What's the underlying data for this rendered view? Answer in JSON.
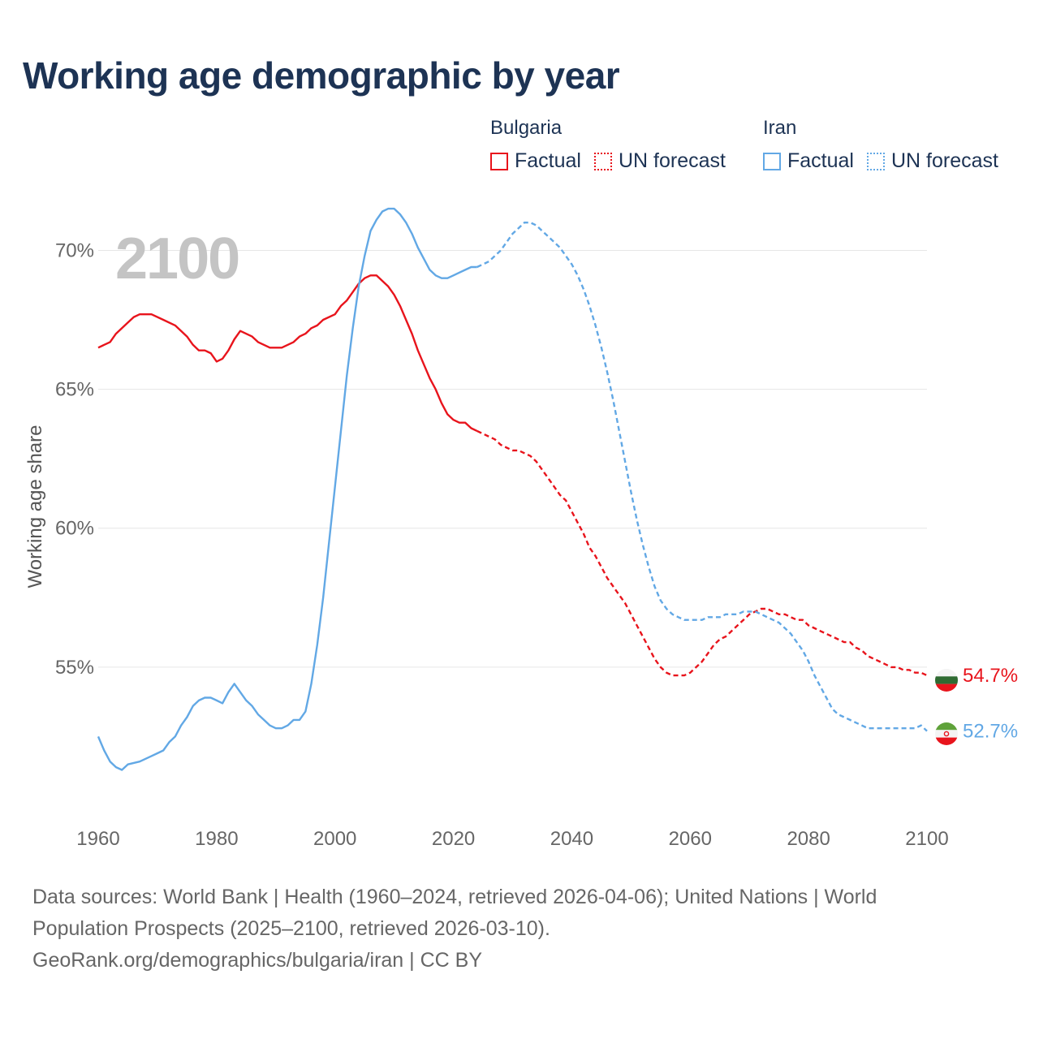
{
  "title": "Working age demographic by year",
  "year_label": "2100",
  "legend": {
    "groups": [
      {
        "name": "Bulgaria",
        "factual_label": "Factual",
        "forecast_label": "UN forecast",
        "color": "#e8141c"
      },
      {
        "name": "Iran",
        "factual_label": "Factual",
        "forecast_label": "UN forecast",
        "color": "#62a8e5"
      }
    ]
  },
  "sources": {
    "line1": "Data sources: World Bank | Health (1960–2024, retrieved 2026-04-06); United Nations | World Population Prospects (2025–2100, retrieved 2026-03-10).",
    "line2": "GeoRank.org/demographics/bulgaria/iran | CC BY"
  },
  "chart_data": {
    "type": "line",
    "title": "Working age demographic by year",
    "xlabel": "",
    "ylabel": "Working age share",
    "xlim": [
      1960,
      2100
    ],
    "ylim": [
      50,
      72
    ],
    "x_ticks": [
      1960,
      1980,
      2000,
      2020,
      2040,
      2060,
      2080,
      2100
    ],
    "x_tick_labels": [
      "1960",
      "1980",
      "2000",
      "2020",
      "2040",
      "2060",
      "2080",
      "2100"
    ],
    "y_ticks": [
      55,
      60,
      65,
      70
    ],
    "y_tick_labels": [
      "55%",
      "60%",
      "65%",
      "70%"
    ],
    "forecast_start": 2024,
    "grid": true,
    "series": [
      {
        "name": "Bulgaria",
        "color": "#e8141c",
        "end_label": "54.7%",
        "points": [
          [
            1960,
            66.5
          ],
          [
            1962,
            66.7
          ],
          [
            1963,
            67.0
          ],
          [
            1965,
            67.4
          ],
          [
            1966,
            67.6
          ],
          [
            1967,
            67.7
          ],
          [
            1969,
            67.7
          ],
          [
            1971,
            67.5
          ],
          [
            1973,
            67.3
          ],
          [
            1975,
            66.9
          ],
          [
            1976,
            66.6
          ],
          [
            1977,
            66.4
          ],
          [
            1978,
            66.4
          ],
          [
            1979,
            66.3
          ],
          [
            1980,
            66.0
          ],
          [
            1981,
            66.1
          ],
          [
            1982,
            66.4
          ],
          [
            1983,
            66.8
          ],
          [
            1984,
            67.1
          ],
          [
            1986,
            66.9
          ],
          [
            1987,
            66.7
          ],
          [
            1989,
            66.5
          ],
          [
            1991,
            66.5
          ],
          [
            1993,
            66.7
          ],
          [
            1994,
            66.9
          ],
          [
            1995,
            67.0
          ],
          [
            1996,
            67.2
          ],
          [
            1997,
            67.3
          ],
          [
            1998,
            67.5
          ],
          [
            2000,
            67.7
          ],
          [
            2001,
            68.0
          ],
          [
            2002,
            68.2
          ],
          [
            2003,
            68.5
          ],
          [
            2004,
            68.8
          ],
          [
            2005,
            69.0
          ],
          [
            2006,
            69.1
          ],
          [
            2007,
            69.1
          ],
          [
            2008,
            68.9
          ],
          [
            2009,
            68.7
          ],
          [
            2010,
            68.4
          ],
          [
            2011,
            68.0
          ],
          [
            2012,
            67.5
          ],
          [
            2013,
            67.0
          ],
          [
            2014,
            66.4
          ],
          [
            2015,
            65.9
          ],
          [
            2016,
            65.4
          ],
          [
            2017,
            65.0
          ],
          [
            2018,
            64.5
          ],
          [
            2019,
            64.1
          ],
          [
            2020,
            63.9
          ],
          [
            2021,
            63.8
          ],
          [
            2022,
            63.8
          ],
          [
            2023,
            63.6
          ],
          [
            2024,
            63.5
          ],
          [
            2025,
            63.4
          ],
          [
            2026,
            63.3
          ],
          [
            2027,
            63.2
          ],
          [
            2028,
            63.0
          ],
          [
            2029,
            62.9
          ],
          [
            2030,
            62.8
          ],
          [
            2031,
            62.8
          ],
          [
            2032,
            62.7
          ],
          [
            2033,
            62.6
          ],
          [
            2034,
            62.4
          ],
          [
            2035,
            62.1
          ],
          [
            2036,
            61.8
          ],
          [
            2037,
            61.5
          ],
          [
            2038,
            61.2
          ],
          [
            2039,
            61.0
          ],
          [
            2040,
            60.6
          ],
          [
            2041,
            60.2
          ],
          [
            2042,
            59.8
          ],
          [
            2043,
            59.3
          ],
          [
            2044,
            59.0
          ],
          [
            2045,
            58.6
          ],
          [
            2046,
            58.2
          ],
          [
            2047,
            57.9
          ],
          [
            2048,
            57.6
          ],
          [
            2049,
            57.3
          ],
          [
            2050,
            56.9
          ],
          [
            2051,
            56.5
          ],
          [
            2052,
            56.1
          ],
          [
            2053,
            55.7
          ],
          [
            2054,
            55.3
          ],
          [
            2055,
            55.0
          ],
          [
            2056,
            54.8
          ],
          [
            2057,
            54.7
          ],
          [
            2058,
            54.7
          ],
          [
            2059,
            54.7
          ],
          [
            2060,
            54.8
          ],
          [
            2061,
            55.0
          ],
          [
            2062,
            55.2
          ],
          [
            2063,
            55.5
          ],
          [
            2064,
            55.8
          ],
          [
            2065,
            56.0
          ],
          [
            2066,
            56.1
          ],
          [
            2067,
            56.3
          ],
          [
            2068,
            56.5
          ],
          [
            2069,
            56.7
          ],
          [
            2070,
            56.9
          ],
          [
            2071,
            57.0
          ],
          [
            2072,
            57.1
          ],
          [
            2073,
            57.1
          ],
          [
            2074,
            57.0
          ],
          [
            2075,
            56.9
          ],
          [
            2076,
            56.9
          ],
          [
            2077,
            56.8
          ],
          [
            2078,
            56.7
          ],
          [
            2079,
            56.7
          ],
          [
            2080,
            56.5
          ],
          [
            2081,
            56.4
          ],
          [
            2082,
            56.3
          ],
          [
            2083,
            56.2
          ],
          [
            2084,
            56.1
          ],
          [
            2085,
            56.0
          ],
          [
            2086,
            55.9
          ],
          [
            2087,
            55.9
          ],
          [
            2088,
            55.7
          ],
          [
            2089,
            55.6
          ],
          [
            2090,
            55.4
          ],
          [
            2091,
            55.3
          ],
          [
            2092,
            55.2
          ],
          [
            2093,
            55.1
          ],
          [
            2094,
            55.0
          ],
          [
            2095,
            55.0
          ],
          [
            2096,
            54.9
          ],
          [
            2097,
            54.9
          ],
          [
            2098,
            54.8
          ],
          [
            2099,
            54.8
          ],
          [
            2100,
            54.7
          ]
        ]
      },
      {
        "name": "Iran",
        "color": "#62a8e5",
        "end_label": "52.7%",
        "points": [
          [
            1960,
            52.5
          ],
          [
            1961,
            52.0
          ],
          [
            1962,
            51.6
          ],
          [
            1963,
            51.4
          ],
          [
            1964,
            51.3
          ],
          [
            1965,
            51.5
          ],
          [
            1967,
            51.6
          ],
          [
            1969,
            51.8
          ],
          [
            1970,
            51.9
          ],
          [
            1971,
            52.0
          ],
          [
            1972,
            52.3
          ],
          [
            1973,
            52.5
          ],
          [
            1974,
            52.9
          ],
          [
            1975,
            53.2
          ],
          [
            1976,
            53.6
          ],
          [
            1977,
            53.8
          ],
          [
            1978,
            53.9
          ],
          [
            1979,
            53.9
          ],
          [
            1980,
            53.8
          ],
          [
            1981,
            53.7
          ],
          [
            1982,
            54.1
          ],
          [
            1983,
            54.4
          ],
          [
            1984,
            54.1
          ],
          [
            1985,
            53.8
          ],
          [
            1986,
            53.6
          ],
          [
            1987,
            53.3
          ],
          [
            1988,
            53.1
          ],
          [
            1989,
            52.9
          ],
          [
            1990,
            52.8
          ],
          [
            1991,
            52.8
          ],
          [
            1992,
            52.9
          ],
          [
            1993,
            53.1
          ],
          [
            1994,
            53.1
          ],
          [
            1995,
            53.4
          ],
          [
            1996,
            54.4
          ],
          [
            1997,
            55.8
          ],
          [
            1998,
            57.5
          ],
          [
            1999,
            59.5
          ],
          [
            2000,
            61.5
          ],
          [
            2001,
            63.5
          ],
          [
            2002,
            65.5
          ],
          [
            2003,
            67.2
          ],
          [
            2004,
            68.7
          ],
          [
            2005,
            69.8
          ],
          [
            2006,
            70.7
          ],
          [
            2007,
            71.1
          ],
          [
            2008,
            71.4
          ],
          [
            2009,
            71.5
          ],
          [
            2010,
            71.5
          ],
          [
            2011,
            71.3
          ],
          [
            2012,
            71.0
          ],
          [
            2013,
            70.6
          ],
          [
            2014,
            70.1
          ],
          [
            2015,
            69.7
          ],
          [
            2016,
            69.3
          ],
          [
            2017,
            69.1
          ],
          [
            2018,
            69.0
          ],
          [
            2019,
            69.0
          ],
          [
            2020,
            69.1
          ],
          [
            2021,
            69.2
          ],
          [
            2022,
            69.3
          ],
          [
            2023,
            69.4
          ],
          [
            2024,
            69.4
          ],
          [
            2025,
            69.5
          ],
          [
            2026,
            69.6
          ],
          [
            2027,
            69.8
          ],
          [
            2028,
            70.0
          ],
          [
            2029,
            70.3
          ],
          [
            2030,
            70.6
          ],
          [
            2031,
            70.8
          ],
          [
            2032,
            71.0
          ],
          [
            2033,
            71.0
          ],
          [
            2034,
            70.9
          ],
          [
            2035,
            70.7
          ],
          [
            2036,
            70.5
          ],
          [
            2037,
            70.3
          ],
          [
            2038,
            70.1
          ],
          [
            2039,
            69.8
          ],
          [
            2040,
            69.5
          ],
          [
            2041,
            69.1
          ],
          [
            2042,
            68.6
          ],
          [
            2043,
            68.0
          ],
          [
            2044,
            67.3
          ],
          [
            2045,
            66.5
          ],
          [
            2046,
            65.6
          ],
          [
            2047,
            64.6
          ],
          [
            2048,
            63.5
          ],
          [
            2049,
            62.4
          ],
          [
            2050,
            61.3
          ],
          [
            2051,
            60.3
          ],
          [
            2052,
            59.4
          ],
          [
            2053,
            58.6
          ],
          [
            2054,
            57.9
          ],
          [
            2055,
            57.4
          ],
          [
            2056,
            57.1
          ],
          [
            2057,
            56.9
          ],
          [
            2058,
            56.8
          ],
          [
            2059,
            56.7
          ],
          [
            2060,
            56.7
          ],
          [
            2062,
            56.7
          ],
          [
            2063,
            56.8
          ],
          [
            2065,
            56.8
          ],
          [
            2066,
            56.9
          ],
          [
            2068,
            56.9
          ],
          [
            2069,
            57.0
          ],
          [
            2071,
            57.0
          ],
          [
            2072,
            56.9
          ],
          [
            2073,
            56.8
          ],
          [
            2074,
            56.7
          ],
          [
            2075,
            56.6
          ],
          [
            2076,
            56.4
          ],
          [
            2077,
            56.2
          ],
          [
            2078,
            55.9
          ],
          [
            2079,
            55.6
          ],
          [
            2080,
            55.2
          ],
          [
            2081,
            54.7
          ],
          [
            2082,
            54.3
          ],
          [
            2083,
            53.9
          ],
          [
            2084,
            53.5
          ],
          [
            2085,
            53.3
          ],
          [
            2086,
            53.2
          ],
          [
            2087,
            53.1
          ],
          [
            2088,
            53.0
          ],
          [
            2089,
            52.9
          ],
          [
            2090,
            52.8
          ],
          [
            2092,
            52.8
          ],
          [
            2094,
            52.8
          ],
          [
            2096,
            52.8
          ],
          [
            2098,
            52.8
          ],
          [
            2099,
            52.9
          ],
          [
            2100,
            52.7
          ]
        ]
      }
    ]
  }
}
